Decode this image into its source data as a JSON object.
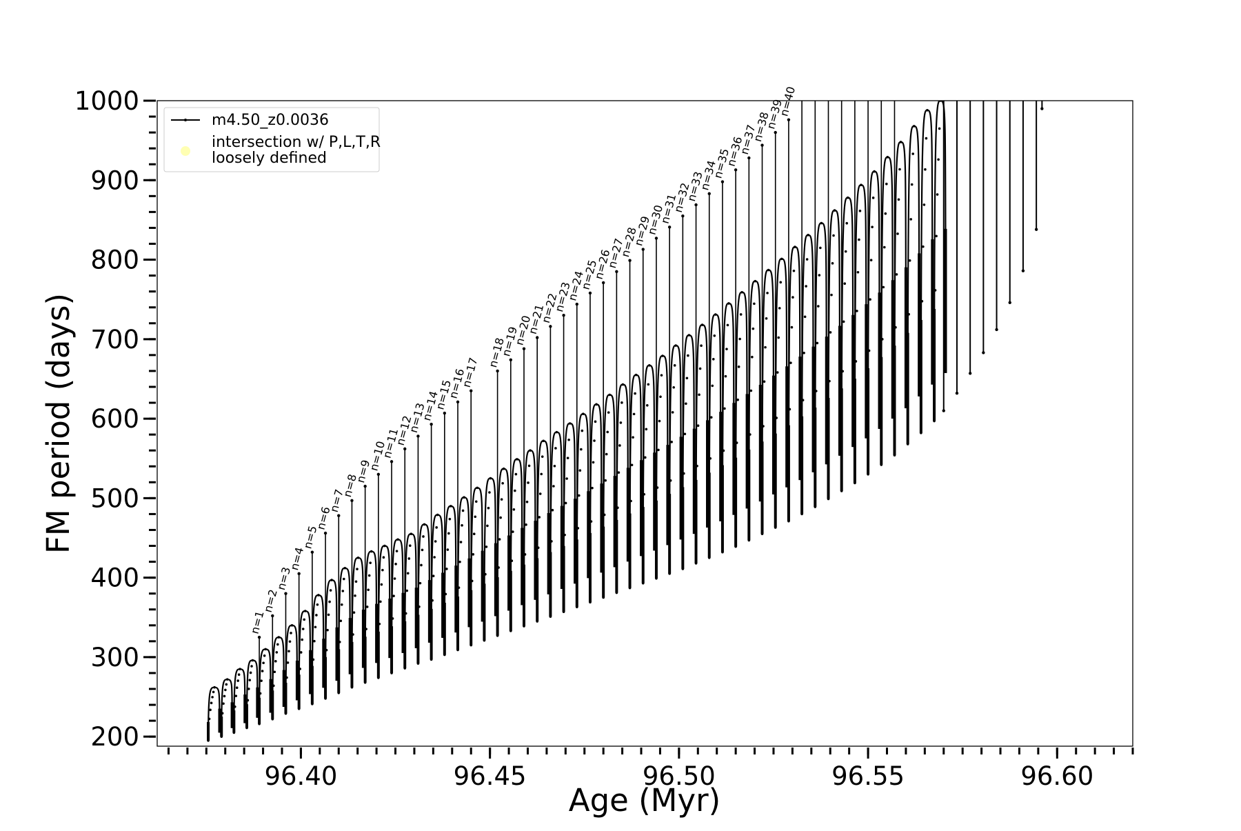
{
  "chart_data": {
    "type": "line",
    "title": "",
    "xlabel": "Age (Myr)",
    "ylabel": "FM period (days)",
    "xlim": [
      96.362,
      96.62
    ],
    "ylim": [
      188,
      1000
    ],
    "xticks": [
      96.4,
      96.45,
      96.5,
      96.55,
      96.6
    ],
    "xtick_labels": [
      "96.40",
      "96.45",
      "96.50",
      "96.55",
      "96.60"
    ],
    "yticks": [
      200,
      300,
      400,
      500,
      600,
      700,
      800,
      900,
      1000
    ],
    "ytick_labels": [
      "200",
      "300",
      "400",
      "500",
      "600",
      "700",
      "800",
      "900",
      "1000"
    ],
    "minor_x_step": 0.005,
    "minor_y_step": 20,
    "grid": false,
    "legend_position": "top-left",
    "legend": [
      {
        "label": "m4.50_z0.0036",
        "marker": "line-with-dots",
        "color": "#000000"
      },
      {
        "label": "intersection w/ P,L,T,R loosely defined",
        "line1": "intersection w/ P,L,T,R",
        "line2": "loosely defined",
        "marker": "circle",
        "color": "#ffffa0"
      }
    ],
    "series": [
      {
        "name": "m4.50_z0.0036",
        "description_values": "Loops: each thermal pulse cycle k has [age start, age end, period minimum, period at loop top]",
        "loops": [
          [
            96.3755,
            96.3785,
            195,
            262
          ],
          [
            96.379,
            96.3818,
            200,
            272
          ],
          [
            96.3823,
            96.3852,
            205,
            285
          ],
          [
            96.3857,
            96.3885,
            211,
            296
          ],
          [
            96.389,
            96.392,
            216,
            310
          ],
          [
            96.3925,
            96.3955,
            222,
            325
          ],
          [
            96.396,
            96.399,
            229,
            340
          ],
          [
            96.3995,
            96.4025,
            235,
            358
          ],
          [
            96.403,
            96.406,
            241,
            378
          ],
          [
            96.4065,
            96.4095,
            248,
            397
          ],
          [
            96.41,
            96.413,
            255,
            412
          ],
          [
            96.4135,
            96.4165,
            262,
            425
          ],
          [
            96.417,
            96.42,
            268,
            433
          ],
          [
            96.4205,
            96.4235,
            274,
            440
          ],
          [
            96.424,
            96.427,
            280,
            448
          ],
          [
            96.4275,
            96.4305,
            286,
            455
          ],
          [
            96.431,
            96.434,
            292,
            467
          ],
          [
            96.4345,
            96.4375,
            297,
            479
          ],
          [
            96.438,
            96.441,
            303,
            490
          ],
          [
            96.4415,
            96.4445,
            309,
            501
          ],
          [
            96.445,
            96.448,
            315,
            513
          ],
          [
            96.4485,
            96.4515,
            321,
            525
          ],
          [
            96.452,
            96.455,
            327,
            537
          ],
          [
            96.4555,
            96.4585,
            333,
            549
          ],
          [
            96.459,
            96.462,
            339,
            560
          ],
          [
            96.4625,
            96.4655,
            345,
            572
          ],
          [
            96.466,
            96.469,
            351,
            583
          ],
          [
            96.4695,
            96.4725,
            357,
            594
          ],
          [
            96.473,
            96.476,
            363,
            606
          ],
          [
            96.4765,
            96.4795,
            369,
            618
          ],
          [
            96.48,
            96.483,
            375,
            630
          ],
          [
            96.4835,
            96.4865,
            381,
            643
          ],
          [
            96.487,
            96.49,
            387,
            655
          ],
          [
            96.4905,
            96.4935,
            393,
            667
          ],
          [
            96.494,
            96.497,
            399,
            679
          ],
          [
            96.4975,
            96.5005,
            405,
            692
          ],
          [
            96.501,
            96.504,
            411,
            705
          ],
          [
            96.5045,
            96.5075,
            418,
            718
          ],
          [
            96.508,
            96.511,
            425,
            731
          ],
          [
            96.5115,
            96.5145,
            432,
            745
          ],
          [
            96.515,
            96.518,
            439,
            759
          ],
          [
            96.5185,
            96.5215,
            447,
            773
          ],
          [
            96.522,
            96.525,
            455,
            787
          ],
          [
            96.5255,
            96.5285,
            463,
            801
          ],
          [
            96.529,
            96.532,
            471,
            816
          ],
          [
            96.5325,
            96.5355,
            480,
            831
          ],
          [
            96.536,
            96.539,
            489,
            846
          ],
          [
            96.5395,
            96.5425,
            499,
            862
          ],
          [
            96.543,
            96.546,
            509,
            878
          ],
          [
            96.5465,
            96.5495,
            519,
            894
          ],
          [
            96.55,
            96.553,
            530,
            911
          ],
          [
            96.5535,
            96.5565,
            542,
            929
          ],
          [
            96.557,
            96.56,
            554,
            948
          ],
          [
            96.5605,
            96.5635,
            568,
            968
          ],
          [
            96.564,
            96.567,
            582,
            988
          ],
          [
            96.5675,
            96.5705,
            597,
            1000
          ]
        ],
        "spikes": [
          [
            96.389,
            325
          ],
          [
            96.3925,
            352
          ],
          [
            96.396,
            380
          ],
          [
            96.3995,
            405
          ],
          [
            96.403,
            432
          ],
          [
            96.4065,
            456
          ],
          [
            96.41,
            478
          ],
          [
            96.4135,
            497
          ],
          [
            96.417,
            515
          ],
          [
            96.4205,
            530
          ],
          [
            96.424,
            546
          ],
          [
            96.4275,
            562
          ],
          [
            96.431,
            578
          ],
          [
            96.4345,
            593
          ],
          [
            96.438,
            607
          ],
          [
            96.4415,
            621
          ],
          [
            96.445,
            635
          ],
          [
            96.452,
            660
          ],
          [
            96.4555,
            674
          ],
          [
            96.459,
            688
          ],
          [
            96.4625,
            702
          ],
          [
            96.466,
            716
          ],
          [
            96.4695,
            730
          ],
          [
            96.473,
            744
          ],
          [
            96.4765,
            758
          ],
          [
            96.48,
            771
          ],
          [
            96.4835,
            785
          ],
          [
            96.487,
            799
          ],
          [
            96.4905,
            813
          ],
          [
            96.494,
            827
          ],
          [
            96.4975,
            841
          ],
          [
            96.501,
            855
          ],
          [
            96.5045,
            869
          ],
          [
            96.508,
            883
          ],
          [
            96.5115,
            898
          ],
          [
            96.515,
            913
          ],
          [
            96.5185,
            928
          ],
          [
            96.522,
            944
          ],
          [
            96.5255,
            960
          ],
          [
            96.529,
            976
          ]
        ],
        "right_spike_tops": [
          [
            96.529,
            976
          ],
          [
            96.5325,
            1000
          ],
          [
            96.536,
            1000
          ],
          [
            96.5395,
            1000
          ],
          [
            96.543,
            1000
          ]
        ],
        "late_spike_bottoms": [
          [
            96.57,
            610
          ],
          [
            96.5735,
            632
          ],
          [
            96.577,
            657
          ],
          [
            96.5805,
            683
          ],
          [
            96.584,
            712
          ],
          [
            96.5875,
            746
          ],
          [
            96.591,
            786
          ],
          [
            96.5945,
            838
          ],
          [
            96.596,
            990
          ]
        ]
      }
    ],
    "annotations": [
      "n=1",
      "n=2",
      "n=3",
      "n=4",
      "n=5",
      "n=6",
      "n=7",
      "n=8",
      "n=9",
      "n=10",
      "n=11",
      "n=12",
      "n=13",
      "n=14",
      "n=15",
      "n=16",
      "n=17",
      "n=18",
      "n=19",
      "n=20",
      "n=21",
      "n=22",
      "n=23",
      "n=24",
      "n=25",
      "n=26",
      "n=27",
      "n=28",
      "n=29",
      "n=30",
      "n=31",
      "n=32",
      "n=33",
      "n=34",
      "n=35",
      "n=36",
      "n=37",
      "n=38",
      "n=39",
      "n=40"
    ]
  }
}
